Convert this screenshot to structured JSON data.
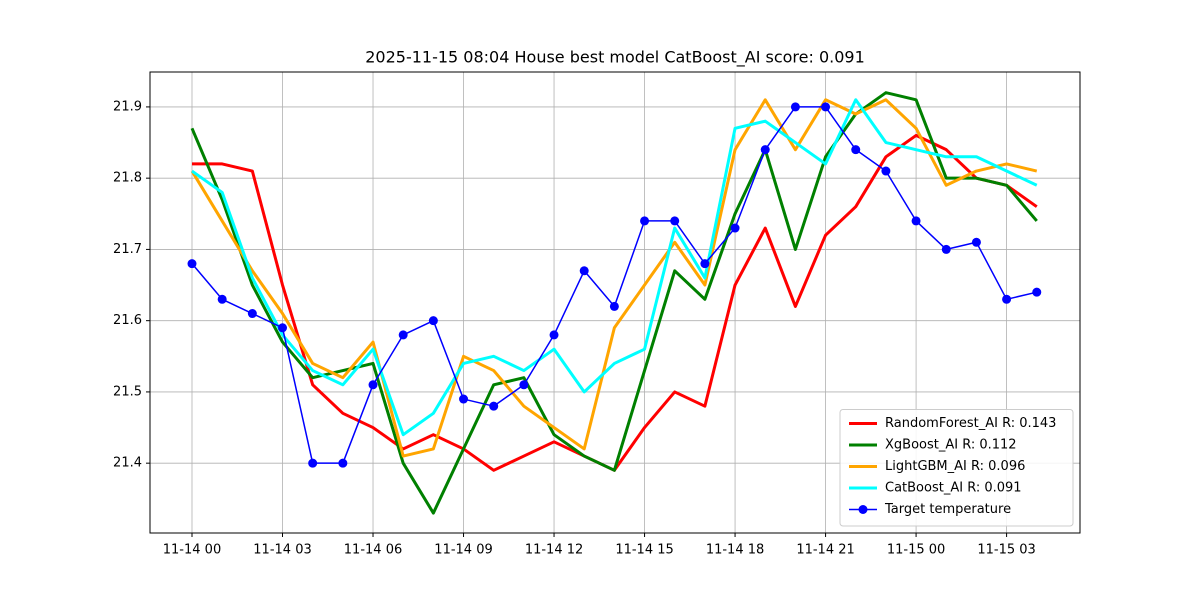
{
  "chart_data": {
    "type": "line",
    "title": "2025-11-15 08:04 House best model CatBoost_AI score: 0.091",
    "categories": [
      "11-14 00",
      null,
      null,
      "11-14 03",
      null,
      null,
      "11-14 06",
      null,
      null,
      "11-14 09",
      null,
      null,
      "11-14 12",
      null,
      null,
      "11-14 15",
      null,
      null,
      "11-14 18",
      null,
      null,
      "11-14 21",
      null,
      null,
      "11-15 00",
      null,
      null,
      "11-15 03",
      null
    ],
    "ylim": [
      21.302,
      21.949
    ],
    "yticks": [
      21.4,
      21.5,
      21.6,
      21.7,
      21.8,
      21.9
    ],
    "grid": true,
    "legend": "lower right",
    "series": [
      {
        "name": "RandomForest_AI R: 0.143",
        "color": "red",
        "line_width": 3,
        "values": [
          21.82,
          21.82,
          21.81,
          21.65,
          21.51,
          21.47,
          21.45,
          21.42,
          21.44,
          21.42,
          21.39,
          21.41,
          21.43,
          21.41,
          21.39,
          21.45,
          21.5,
          21.48,
          21.65,
          21.73,
          21.62,
          21.72,
          21.76,
          21.83,
          21.86,
          21.84,
          21.8,
          21.79,
          21.76
        ]
      },
      {
        "name": "XgBoost_AI R: 0.112",
        "color": "green",
        "line_width": 3,
        "values": [
          21.87,
          21.77,
          21.65,
          21.57,
          21.52,
          21.53,
          21.54,
          21.4,
          21.33,
          21.42,
          21.51,
          21.52,
          21.44,
          21.41,
          21.39,
          21.53,
          21.67,
          21.63,
          21.75,
          21.84,
          21.7,
          21.83,
          21.89,
          21.92,
          21.91,
          21.8,
          21.8,
          21.79,
          21.74
        ]
      },
      {
        "name": "LightGBM_AI R: 0.096",
        "color": "orange",
        "line_width": 3,
        "values": [
          21.81,
          21.74,
          21.67,
          21.61,
          21.54,
          21.52,
          21.57,
          21.41,
          21.42,
          21.55,
          21.53,
          21.48,
          21.45,
          21.42,
          21.59,
          21.65,
          21.71,
          21.65,
          21.84,
          21.91,
          21.84,
          21.91,
          21.89,
          21.91,
          21.87,
          21.79,
          21.81,
          21.82,
          21.81
        ]
      },
      {
        "name": "CatBoost_AI R: 0.091",
        "color": "cyan",
        "line_width": 3,
        "values": [
          21.81,
          21.78,
          21.66,
          21.58,
          21.53,
          21.51,
          21.56,
          21.44,
          21.47,
          21.54,
          21.55,
          21.53,
          21.56,
          21.5,
          21.54,
          21.56,
          21.73,
          21.66,
          21.87,
          21.88,
          21.85,
          21.82,
          21.91,
          21.85,
          21.84,
          21.83,
          21.83,
          21.81,
          21.79
        ]
      },
      {
        "name": "Target temperature",
        "color": "blue",
        "line_width": 1.5,
        "marker": "circle",
        "values": [
          21.68,
          21.63,
          21.61,
          21.59,
          21.4,
          21.4,
          21.51,
          21.58,
          21.6,
          21.49,
          21.48,
          21.51,
          21.58,
          21.67,
          21.62,
          21.74,
          21.74,
          21.68,
          21.73,
          21.84,
          21.9,
          21.9,
          21.84,
          21.81,
          21.74,
          21.7,
          21.71,
          21.63,
          21.64
        ]
      }
    ]
  }
}
